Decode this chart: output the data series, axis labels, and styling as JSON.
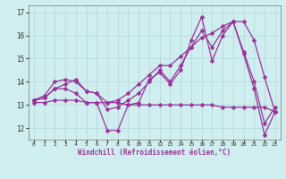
{
  "title": "",
  "xlabel": "Windchill (Refroidissement éolien,°C)",
  "background_color": "#d0eef0",
  "line_color": "#993399",
  "grid_color": "#b0d8d8",
  "xlim": [
    -0.5,
    23.5
  ],
  "ylim": [
    11.5,
    17.3
  ],
  "xticks": [
    0,
    1,
    2,
    3,
    4,
    5,
    6,
    7,
    8,
    9,
    10,
    11,
    12,
    13,
    14,
    15,
    16,
    17,
    18,
    19,
    20,
    21,
    22,
    23
  ],
  "yticks": [
    12,
    13,
    14,
    15,
    16,
    17
  ],
  "series": {
    "line1": [
      13.2,
      13.3,
      13.7,
      13.7,
      13.5,
      13.1,
      13.1,
      11.9,
      11.9,
      13.0,
      13.1,
      14.1,
      14.4,
      13.9,
      14.5,
      15.8,
      16.8,
      14.9,
      16.0,
      16.6,
      15.2,
      13.7,
      11.7,
      12.7
    ],
    "line2": [
      13.1,
      13.1,
      13.2,
      13.2,
      13.2,
      13.1,
      13.1,
      13.1,
      13.1,
      13.0,
      13.0,
      13.0,
      13.0,
      13.0,
      13.0,
      13.0,
      13.0,
      13.0,
      12.9,
      12.9,
      12.9,
      12.9,
      12.9,
      12.7
    ],
    "line3": [
      13.2,
      13.3,
      13.7,
      13.9,
      14.1,
      13.6,
      13.5,
      12.8,
      12.9,
      13.2,
      13.5,
      14.0,
      14.5,
      14.0,
      14.7,
      15.5,
      16.2,
      15.5,
      16.2,
      16.6,
      15.3,
      14.0,
      12.2,
      12.9
    ],
    "line4": [
      13.2,
      13.4,
      14.0,
      14.1,
      14.0,
      13.6,
      13.5,
      13.1,
      13.2,
      13.5,
      13.9,
      14.3,
      14.7,
      14.7,
      15.1,
      15.5,
      15.9,
      16.1,
      16.4,
      16.6,
      16.6,
      15.8,
      14.2,
      12.7
    ]
  },
  "marker": "D",
  "markersize": 2.5,
  "linewidth": 0.9
}
